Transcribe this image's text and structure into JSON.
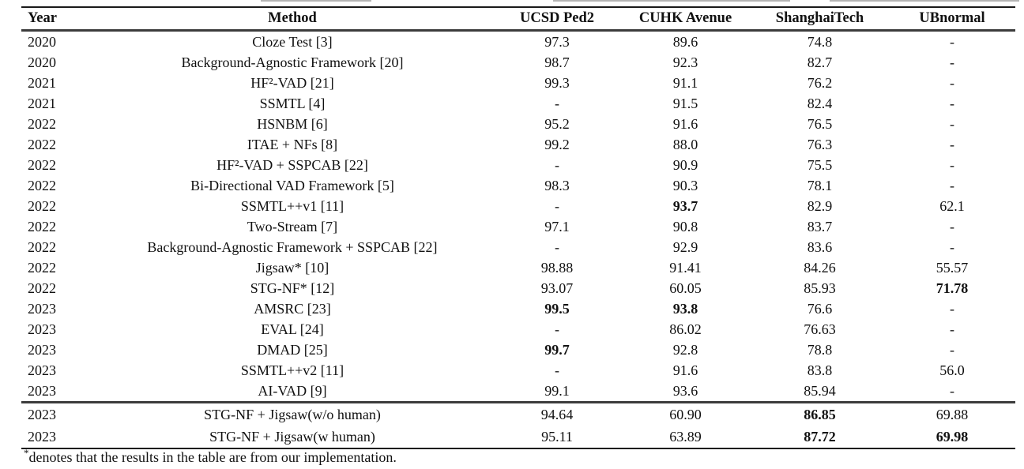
{
  "colors": {
    "background": "#ffffff",
    "text": "#111111",
    "rule": "#1a1a1a",
    "rule-heavy": "#3c3c3c"
  },
  "table": {
    "columns": [
      "Year",
      "Method",
      "UCSD Ped2",
      "CUHK Avenue",
      "ShanghaiTech",
      "UBnormal"
    ],
    "rows": [
      {
        "year": "2020",
        "method": "Cloze Test [3]",
        "values": [
          {
            "v": "97.3"
          },
          {
            "v": "89.6"
          },
          {
            "v": "74.8"
          },
          {
            "v": "-"
          }
        ],
        "section": "main"
      },
      {
        "year": "2020",
        "method": "Background-Agnostic Framework [20]",
        "values": [
          {
            "v": "98.7"
          },
          {
            "v": "92.3"
          },
          {
            "v": "82.7"
          },
          {
            "v": "-"
          }
        ],
        "section": "main"
      },
      {
        "year": "2021",
        "method": "HF²-VAD [21]",
        "values": [
          {
            "v": "99.3"
          },
          {
            "v": "91.1"
          },
          {
            "v": "76.2"
          },
          {
            "v": "-"
          }
        ],
        "section": "main"
      },
      {
        "year": "2021",
        "method": "SSMTL [4]",
        "values": [
          {
            "v": "-"
          },
          {
            "v": "91.5"
          },
          {
            "v": "82.4"
          },
          {
            "v": "-"
          }
        ],
        "section": "main"
      },
      {
        "year": "2022",
        "method": "HSNBM [6]",
        "values": [
          {
            "v": "95.2"
          },
          {
            "v": "91.6"
          },
          {
            "v": "76.5"
          },
          {
            "v": "-"
          }
        ],
        "section": "main"
      },
      {
        "year": "2022",
        "method": "ITAE + NFs [8]",
        "values": [
          {
            "v": "99.2"
          },
          {
            "v": "88.0"
          },
          {
            "v": "76.3"
          },
          {
            "v": "-"
          }
        ],
        "section": "main"
      },
      {
        "year": "2022",
        "method": "HF²-VAD + SSPCAB [22]",
        "values": [
          {
            "v": "-"
          },
          {
            "v": "90.9"
          },
          {
            "v": "75.5"
          },
          {
            "v": "-"
          }
        ],
        "section": "main"
      },
      {
        "year": "2022",
        "method": "Bi-Directional VAD Framework [5]",
        "values": [
          {
            "v": "98.3"
          },
          {
            "v": "90.3"
          },
          {
            "v": "78.1"
          },
          {
            "v": "-"
          }
        ],
        "section": "main"
      },
      {
        "year": "2022",
        "method": "SSMTL++v1 [11]",
        "values": [
          {
            "v": "-"
          },
          {
            "v": "93.7",
            "bold": true
          },
          {
            "v": "82.9"
          },
          {
            "v": "62.1"
          }
        ],
        "section": "main"
      },
      {
        "year": "2022",
        "method": "Two-Stream [7]",
        "values": [
          {
            "v": "97.1"
          },
          {
            "v": "90.8"
          },
          {
            "v": "83.7"
          },
          {
            "v": "-"
          }
        ],
        "section": "main"
      },
      {
        "year": "2022",
        "method": "Background-Agnostic Framework + SSPCAB [22]",
        "values": [
          {
            "v": "-"
          },
          {
            "v": "92.9"
          },
          {
            "v": "83.6"
          },
          {
            "v": "-"
          }
        ],
        "section": "main"
      },
      {
        "year": "2022",
        "method": "Jigsaw* [10]",
        "values": [
          {
            "v": "98.88"
          },
          {
            "v": "91.41"
          },
          {
            "v": "84.26"
          },
          {
            "v": "55.57"
          }
        ],
        "section": "main"
      },
      {
        "year": "2022",
        "method": "STG-NF* [12]",
        "values": [
          {
            "v": "93.07"
          },
          {
            "v": "60.05"
          },
          {
            "v": "85.93"
          },
          {
            "v": "71.78",
            "bold": true
          }
        ],
        "section": "main"
      },
      {
        "year": "2023",
        "method": "AMSRC [23]",
        "values": [
          {
            "v": "99.5",
            "bold": true
          },
          {
            "v": "93.8",
            "bold": true
          },
          {
            "v": "76.6"
          },
          {
            "v": "-"
          }
        ],
        "section": "main"
      },
      {
        "year": "2023",
        "method": "EVAL [24]",
        "values": [
          {
            "v": "-"
          },
          {
            "v": "86.02"
          },
          {
            "v": "76.63"
          },
          {
            "v": "-"
          }
        ],
        "section": "main"
      },
      {
        "year": "2023",
        "method": "DMAD [25]",
        "values": [
          {
            "v": "99.7",
            "bold": true
          },
          {
            "v": "92.8"
          },
          {
            "v": "78.8"
          },
          {
            "v": "-"
          }
        ],
        "section": "main"
      },
      {
        "year": "2023",
        "method": "SSMTL++v2 [11]",
        "values": [
          {
            "v": "-"
          },
          {
            "v": "91.6"
          },
          {
            "v": "83.8"
          },
          {
            "v": "56.0"
          }
        ],
        "section": "main"
      },
      {
        "year": "2023",
        "method": "AI-VAD [9]",
        "values": [
          {
            "v": "99.1"
          },
          {
            "v": "93.6"
          },
          {
            "v": "85.94"
          },
          {
            "v": "-"
          }
        ],
        "section": "main"
      },
      {
        "year": "2023",
        "method": "STG-NF + Jigsaw(w/o human)",
        "values": [
          {
            "v": "94.64"
          },
          {
            "v": "60.90"
          },
          {
            "v": "86.85",
            "bold": true
          },
          {
            "v": "69.88"
          }
        ],
        "section": "ours"
      },
      {
        "year": "2023",
        "method": "STG-NF + Jigsaw(w human)",
        "values": [
          {
            "v": "95.11"
          },
          {
            "v": "63.89"
          },
          {
            "v": "87.72",
            "bold": true
          },
          {
            "v": "69.98",
            "bold": true
          }
        ],
        "section": "ours"
      }
    ],
    "footnote": {
      "marker": "*",
      "text": "denotes that the results in the table are from our implementation."
    }
  }
}
